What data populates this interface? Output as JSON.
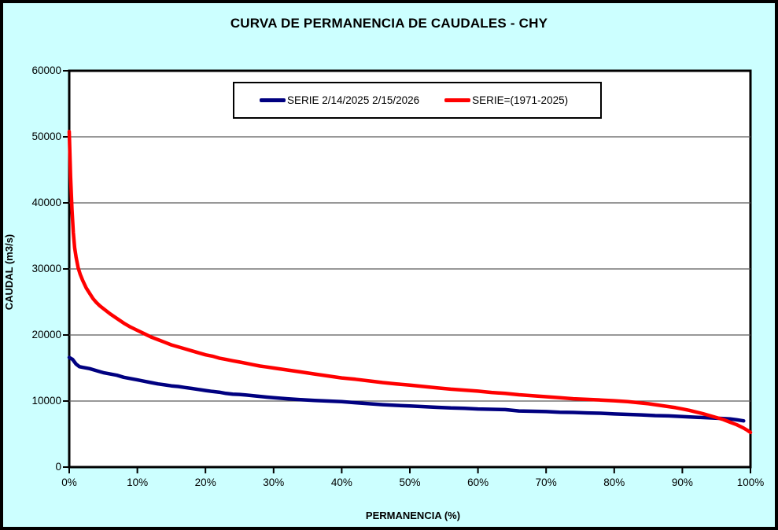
{
  "colors": {
    "background": "#CCFFFF",
    "plot_background": "#FFFFFF",
    "grid": "#5A5A5A",
    "axis": "#000000",
    "series_blue": "#000080",
    "series_red": "#FF0000"
  },
  "chart_data": {
    "type": "line",
    "title": "CURVA DE PERMANENCIA DE CAUDALES - CHY",
    "xlabel": "PERMANENCIA (%)",
    "ylabel": "CAUDAL (m3/s)",
    "xlim": [
      0,
      100
    ],
    "ylim": [
      0,
      60000
    ],
    "grid": "horizontal-only",
    "legend_position": "top-center-inside-frame",
    "x_ticks": [
      "0%",
      "10%",
      "20%",
      "30%",
      "40%",
      "50%",
      "60%",
      "70%",
      "80%",
      "90%",
      "100%"
    ],
    "x_tick_values": [
      0,
      10,
      20,
      30,
      40,
      50,
      60,
      70,
      80,
      90,
      100
    ],
    "y_ticks": [
      "0",
      "10000",
      "20000",
      "30000",
      "40000",
      "50000",
      "60000"
    ],
    "y_tick_values": [
      0,
      10000,
      20000,
      30000,
      40000,
      50000,
      60000
    ],
    "series": [
      {
        "name": "SERIE 2/14/2025 2/15/2026",
        "color": "#000080",
        "points": [
          [
            0,
            16600
          ],
          [
            0.5,
            16300
          ],
          [
            1,
            15600
          ],
          [
            1.5,
            15200
          ],
          [
            2,
            15100
          ],
          [
            3,
            14900
          ],
          [
            4,
            14600
          ],
          [
            5,
            14300
          ],
          [
            6,
            14100
          ],
          [
            7,
            13900
          ],
          [
            8,
            13600
          ],
          [
            9,
            13400
          ],
          [
            10,
            13200
          ],
          [
            11,
            13000
          ],
          [
            12,
            12800
          ],
          [
            13,
            12600
          ],
          [
            14,
            12450
          ],
          [
            15,
            12300
          ],
          [
            16,
            12200
          ],
          [
            17,
            12050
          ],
          [
            18,
            11900
          ],
          [
            19,
            11750
          ],
          [
            20,
            11600
          ],
          [
            21,
            11450
          ],
          [
            22,
            11350
          ],
          [
            23,
            11150
          ],
          [
            24,
            11050
          ],
          [
            25,
            11000
          ],
          [
            26,
            10900
          ],
          [
            27,
            10800
          ],
          [
            28,
            10700
          ],
          [
            29,
            10600
          ],
          [
            30,
            10500
          ],
          [
            32,
            10350
          ],
          [
            34,
            10200
          ],
          [
            36,
            10100
          ],
          [
            38,
            10000
          ],
          [
            40,
            9900
          ],
          [
            42,
            9750
          ],
          [
            44,
            9600
          ],
          [
            46,
            9450
          ],
          [
            48,
            9350
          ],
          [
            50,
            9250
          ],
          [
            52,
            9150
          ],
          [
            54,
            9050
          ],
          [
            56,
            8950
          ],
          [
            58,
            8900
          ],
          [
            60,
            8800
          ],
          [
            62,
            8750
          ],
          [
            64,
            8700
          ],
          [
            65,
            8600
          ],
          [
            66,
            8500
          ],
          [
            68,
            8450
          ],
          [
            70,
            8400
          ],
          [
            72,
            8300
          ],
          [
            74,
            8270
          ],
          [
            76,
            8200
          ],
          [
            78,
            8150
          ],
          [
            80,
            8050
          ],
          [
            82,
            7980
          ],
          [
            84,
            7900
          ],
          [
            86,
            7800
          ],
          [
            88,
            7750
          ],
          [
            90,
            7650
          ],
          [
            92,
            7550
          ],
          [
            94,
            7450
          ],
          [
            96,
            7350
          ],
          [
            97,
            7300
          ],
          [
            98,
            7150
          ],
          [
            99,
            7000
          ]
        ]
      },
      {
        "name": "SERIE=(1971-2025)",
        "color": "#FF0000",
        "points": [
          [
            0,
            50800
          ],
          [
            0.2,
            44000
          ],
          [
            0.4,
            39000
          ],
          [
            0.6,
            35500
          ],
          [
            0.8,
            33200
          ],
          [
            1,
            31800
          ],
          [
            1.3,
            30200
          ],
          [
            1.6,
            29200
          ],
          [
            2,
            28200
          ],
          [
            2.5,
            27100
          ],
          [
            3,
            26300
          ],
          [
            3.5,
            25500
          ],
          [
            4,
            24900
          ],
          [
            4.5,
            24400
          ],
          [
            5,
            24000
          ],
          [
            6,
            23200
          ],
          [
            7,
            22500
          ],
          [
            8,
            21800
          ],
          [
            9,
            21200
          ],
          [
            10,
            20700
          ],
          [
            11,
            20200
          ],
          [
            12,
            19700
          ],
          [
            13,
            19300
          ],
          [
            14,
            18900
          ],
          [
            15,
            18500
          ],
          [
            16,
            18200
          ],
          [
            17,
            17900
          ],
          [
            18,
            17600
          ],
          [
            19,
            17300
          ],
          [
            20,
            17000
          ],
          [
            21,
            16800
          ],
          [
            22,
            16500
          ],
          [
            23,
            16300
          ],
          [
            24,
            16100
          ],
          [
            25,
            15900
          ],
          [
            26,
            15700
          ],
          [
            27,
            15500
          ],
          [
            28,
            15300
          ],
          [
            29,
            15150
          ],
          [
            30,
            15000
          ],
          [
            32,
            14700
          ],
          [
            34,
            14400
          ],
          [
            36,
            14100
          ],
          [
            38,
            13800
          ],
          [
            40,
            13500
          ],
          [
            42,
            13300
          ],
          [
            44,
            13050
          ],
          [
            46,
            12800
          ],
          [
            48,
            12600
          ],
          [
            50,
            12400
          ],
          [
            52,
            12200
          ],
          [
            54,
            12000
          ],
          [
            56,
            11800
          ],
          [
            58,
            11650
          ],
          [
            60,
            11500
          ],
          [
            62,
            11300
          ],
          [
            64,
            11150
          ],
          [
            66,
            10950
          ],
          [
            68,
            10800
          ],
          [
            70,
            10650
          ],
          [
            72,
            10500
          ],
          [
            74,
            10350
          ],
          [
            76,
            10250
          ],
          [
            78,
            10150
          ],
          [
            80,
            10050
          ],
          [
            82,
            9900
          ],
          [
            84,
            9700
          ],
          [
            85,
            9600
          ],
          [
            86,
            9450
          ],
          [
            87,
            9300
          ],
          [
            88,
            9150
          ],
          [
            89,
            9000
          ],
          [
            90,
            8800
          ],
          [
            91,
            8600
          ],
          [
            92,
            8350
          ],
          [
            93,
            8100
          ],
          [
            94,
            7800
          ],
          [
            95,
            7500
          ],
          [
            96,
            7200
          ],
          [
            97,
            6800
          ],
          [
            98,
            6400
          ],
          [
            99,
            5900
          ],
          [
            99.5,
            5600
          ],
          [
            100,
            5250
          ]
        ]
      }
    ]
  }
}
